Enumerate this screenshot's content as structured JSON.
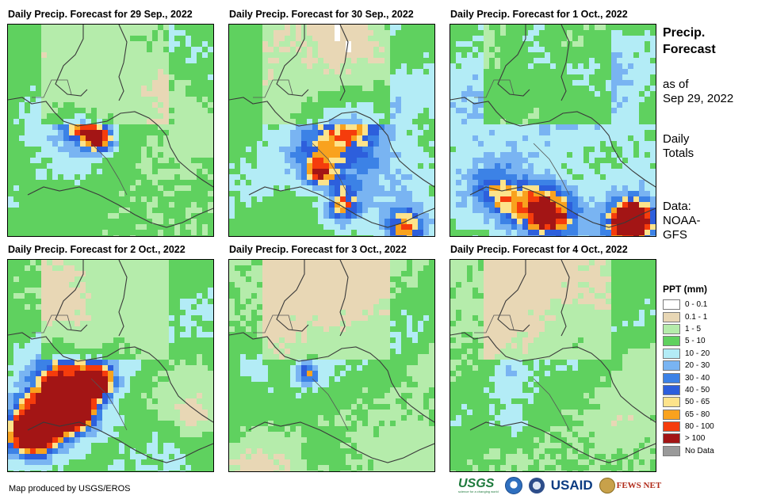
{
  "panels": [
    {
      "title": "Daily Precip. Forecast for 29 Sep., 2022"
    },
    {
      "title": "Daily Precip. Forecast for 30 Sep., 2022"
    },
    {
      "title": "Daily Precip. Forecast for 1 Oct., 2022"
    },
    {
      "title": "Daily Precip. Forecast for 2 Oct., 2022"
    },
    {
      "title": "Daily Precip. Forecast for 3 Oct., 2022"
    },
    {
      "title": "Daily Precip. Forecast for 4 Oct., 2022"
    }
  ],
  "sidebar": {
    "title_line1": "Precip.",
    "title_line2": "Forecast",
    "asof_line1": "as of",
    "asof_line2": "Sep 29, 2022",
    "daily_line1": "Daily",
    "daily_line2": "Totals",
    "data_line1": "Data:",
    "data_line2": "NOAA-",
    "data_line3": "GFS"
  },
  "legend": {
    "title": "PPT (mm)",
    "items": [
      {
        "label": "0 - 0.1",
        "color": "#ffffff"
      },
      {
        "label": "0.1 - 1",
        "color": "#e8d7b5"
      },
      {
        "label": "1 - 5",
        "color": "#b5ecab"
      },
      {
        "label": "5 - 10",
        "color": "#5fd15f"
      },
      {
        "label": "10 - 20",
        "color": "#b3ecf6"
      },
      {
        "label": "20 - 30",
        "color": "#79b4f2"
      },
      {
        "label": "30 - 40",
        "color": "#3c82e6"
      },
      {
        "label": "40 - 50",
        "color": "#2d5fdc"
      },
      {
        "label": "50 - 65",
        "color": "#fde38b"
      },
      {
        "label": "65 - 80",
        "color": "#f9a21e"
      },
      {
        "label": "80 - 100",
        "color": "#f53c0c"
      },
      {
        "label": "> 100",
        "color": "#a31515"
      },
      {
        "label": "No Data",
        "color": "#9a9a9a"
      }
    ]
  },
  "footer": {
    "credit": "Map produced by USGS/EROS"
  },
  "logos": {
    "usgs": "USGS",
    "usgs_tagline": "science for a changing world",
    "usaid": "USAID",
    "fews": "FEWS NET"
  }
}
